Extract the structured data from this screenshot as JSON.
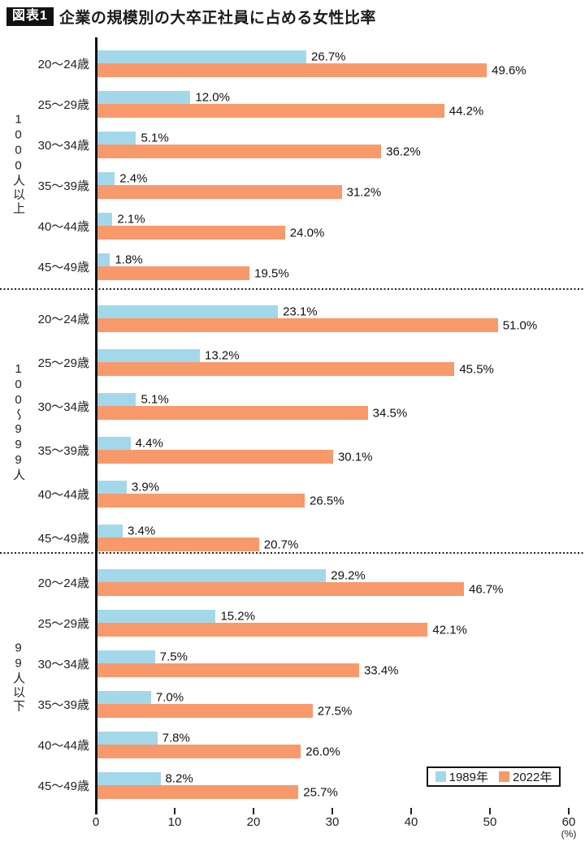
{
  "header": {
    "badge": "図表1",
    "title": "企業の規模別の大卒正社員に占める女性比率"
  },
  "colors": {
    "series_1989": "#A3D8EB",
    "series_2022": "#F8996B",
    "axis": "#111111"
  },
  "legend": {
    "items": [
      {
        "label": "1989年",
        "color": "#A3D8EB"
      },
      {
        "label": "2022年",
        "color": "#F8996B"
      }
    ]
  },
  "xaxis": {
    "unit_label": "(%)"
  },
  "chart_data": {
    "type": "bar",
    "orientation": "horizontal",
    "title": "図表1 企業の規模別の大卒正社員に占める女性比率",
    "xlabel": "(%)",
    "xlim": [
      0,
      60
    ],
    "x_ticks": [
      0,
      10,
      20,
      30,
      40,
      50,
      60
    ],
    "legend_position": "bottom-right",
    "value_suffix": "%",
    "series_names": [
      "1989年",
      "2022年"
    ],
    "groups": [
      {
        "label": "1000人以上",
        "categories": [
          "20〜24歳",
          "25〜29歳",
          "30〜34歳",
          "35〜39歳",
          "40〜44歳",
          "45〜49歳"
        ],
        "series": [
          {
            "name": "1989年",
            "values": [
              26.7,
              12.0,
              5.1,
              2.4,
              2.1,
              1.8
            ]
          },
          {
            "name": "2022年",
            "values": [
              49.6,
              44.2,
              36.2,
              31.2,
              24.0,
              19.5
            ]
          }
        ]
      },
      {
        "label": "100〜999人",
        "categories": [
          "20〜24歳",
          "25〜29歳",
          "30〜34歳",
          "35〜39歳",
          "40〜44歳",
          "45〜49歳"
        ],
        "series": [
          {
            "name": "1989年",
            "values": [
              23.1,
              13.2,
              5.1,
              4.4,
              3.9,
              3.4
            ]
          },
          {
            "name": "2022年",
            "values": [
              51.0,
              45.5,
              34.5,
              30.1,
              26.5,
              20.7
            ]
          }
        ]
      },
      {
        "label": "99人以下",
        "categories": [
          "20〜24歳",
          "25〜29歳",
          "30〜34歳",
          "35〜39歳",
          "40〜44歳",
          "45〜49歳"
        ],
        "series": [
          {
            "name": "1989年",
            "values": [
              29.2,
              15.2,
              7.5,
              7.0,
              7.8,
              8.2
            ]
          },
          {
            "name": "2022年",
            "values": [
              46.7,
              42.1,
              33.4,
              27.5,
              26.0,
              25.7
            ]
          }
        ]
      }
    ]
  }
}
